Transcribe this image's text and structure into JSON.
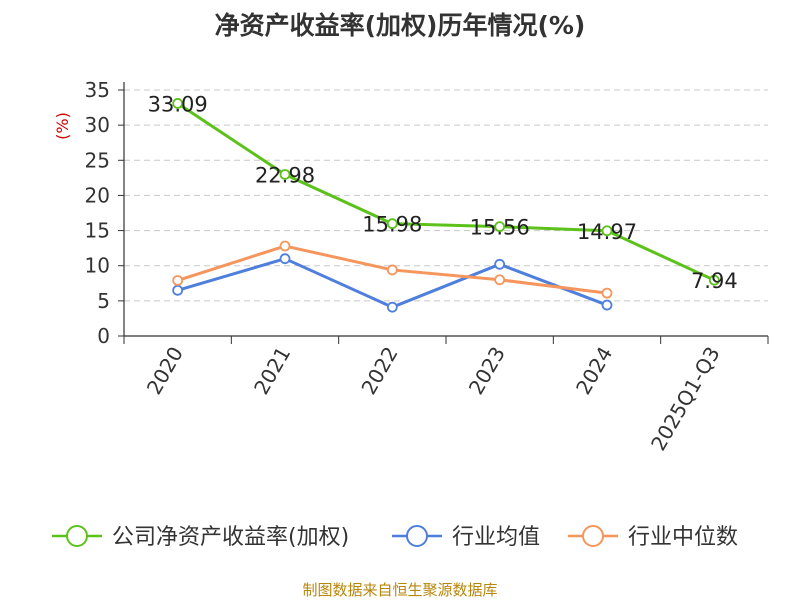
{
  "chart_data": {
    "type": "line",
    "title": "净资产收益率(加权)历年情况(%)",
    "ylabel": "(%)",
    "categories": [
      "2020",
      "2021",
      "2022",
      "2023",
      "2024",
      "2025Q1-Q3"
    ],
    "ylim": [
      0,
      35
    ],
    "yticks": [
      0,
      5,
      10,
      15,
      20,
      25,
      30,
      35
    ],
    "grid": true,
    "legend_position": "bottom",
    "series": [
      {
        "name": "公司净资产收益率(加权)",
        "color": "#5cc21b",
        "values": [
          33.09,
          22.98,
          15.98,
          15.56,
          14.97,
          7.94
        ],
        "labels": [
          "33.09",
          "22.98",
          "15.98",
          "15.56",
          "14.97",
          "7.94"
        ]
      },
      {
        "name": "行业均值",
        "color": "#4f7fdc",
        "values": [
          6.5,
          11.0,
          4.1,
          10.2,
          4.4,
          null
        ]
      },
      {
        "name": "行业中位数",
        "color": "#f6955c",
        "values": [
          7.9,
          12.8,
          9.4,
          8.0,
          6.1,
          null
        ]
      }
    ],
    "ylabel_color": "#cc0000"
  },
  "footer": {
    "source": "制图数据来自恒生聚源数据库",
    "source_color": "#b8860b"
  }
}
